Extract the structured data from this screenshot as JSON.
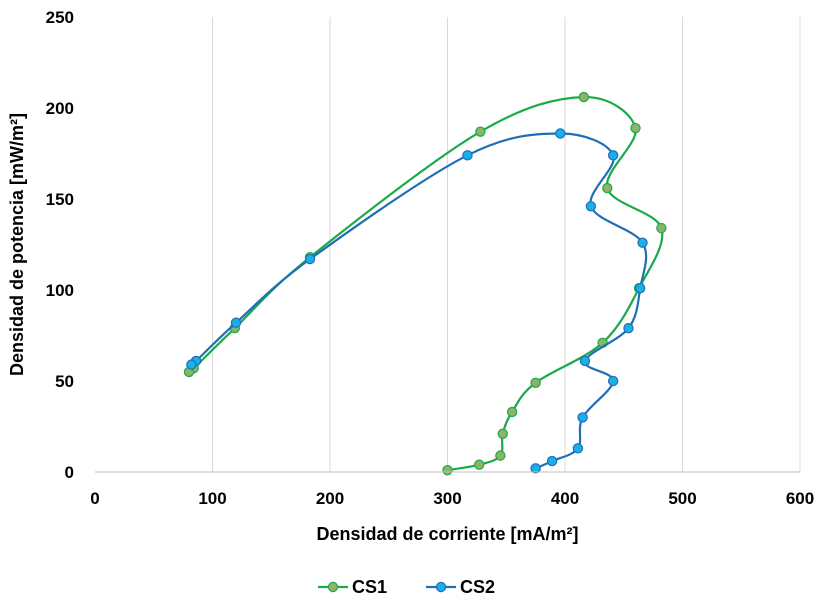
{
  "chart_data": {
    "type": "scatter",
    "xlabel": "Densidad de corriente [mA/m²]",
    "ylabel": "Densidad de potencia [mW/m²]",
    "xlim": [
      0,
      600
    ],
    "ylim": [
      0,
      250
    ],
    "xticks": [
      "0",
      "100",
      "200",
      "300",
      "400",
      "500",
      "600"
    ],
    "yticks": [
      "0",
      "50",
      "100",
      "150",
      "200",
      "250"
    ],
    "grid": "vertical",
    "legend": "bottom",
    "series": [
      {
        "name": "CS1",
        "line_color": "#1aaa4a",
        "marker_fill": "#8db36a",
        "x": [
          300,
          327,
          345,
          347,
          355,
          375,
          432,
          463,
          482,
          436,
          460,
          416,
          328,
          183,
          119,
          84,
          80
        ],
        "y": [
          1,
          4,
          9,
          21,
          33,
          49,
          71,
          101,
          134,
          156,
          189,
          206,
          187,
          118,
          79,
          57,
          55
        ]
      },
      {
        "name": "CS2",
        "line_color": "#1f6fb5",
        "marker_fill": "#19b0ea",
        "x": [
          375,
          389,
          411,
          415,
          441,
          417,
          454,
          464,
          466,
          422,
          441,
          396,
          317,
          183,
          120,
          86,
          82
        ],
        "y": [
          2,
          6,
          13,
          30,
          50,
          61,
          79,
          101,
          126,
          146,
          174,
          186,
          174,
          117,
          82,
          61,
          59
        ]
      }
    ]
  }
}
